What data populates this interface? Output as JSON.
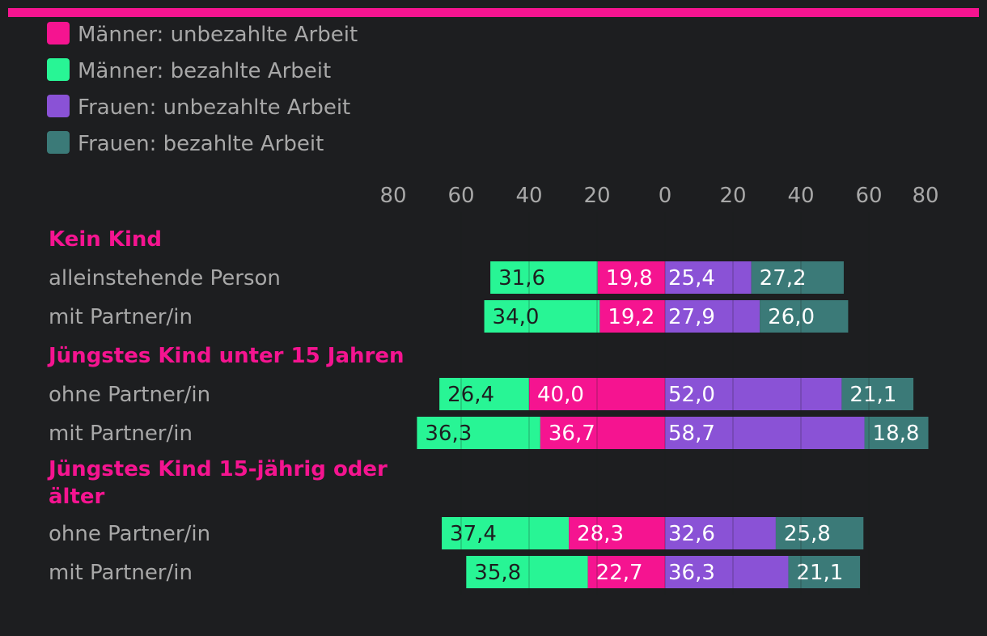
{
  "colors": {
    "accent": "#f51490",
    "men_unpaid": "#f51490",
    "men_paid": "#28f595",
    "women_unpaid": "#8a52d6",
    "women_paid": "#3b7a78",
    "background": "#1d1e20",
    "text": "#a8a8a8"
  },
  "chart_data": {
    "type": "bar",
    "orientation": "horizontal-stacked-diverging",
    "legend": [
      {
        "key": "men_unpaid",
        "label": "Männer: unbezahlte Arbeit"
      },
      {
        "key": "men_paid",
        "label": "Männer: bezahlte Arbeit"
      },
      {
        "key": "women_unpaid",
        "label": "Frauen: unbezahlte Arbeit"
      },
      {
        "key": "women_paid",
        "label": "Frauen: bezahlte Arbeit"
      }
    ],
    "legend_position": "top-left",
    "x_ticks_left": [
      "80",
      "60",
      "40",
      "20"
    ],
    "x_tick_zero": "0",
    "x_ticks_right": [
      "20",
      "40",
      "60",
      "80"
    ],
    "xlim": [
      -80,
      80
    ],
    "groups": [
      {
        "label": "Kein Kind",
        "rows": [
          {
            "label": "alleinstehende Person",
            "men_paid": 31.6,
            "men_unpaid": 19.8,
            "women_unpaid": 25.4,
            "women_paid": 27.2,
            "labels": {
              "men_paid": "31,6",
              "men_unpaid": "19,8",
              "women_unpaid": "25,4",
              "women_paid": "27,2"
            }
          },
          {
            "label": "mit Partner/in",
            "men_paid": 34.0,
            "men_unpaid": 19.2,
            "women_unpaid": 27.9,
            "women_paid": 26.0,
            "labels": {
              "men_paid": "34,0",
              "men_unpaid": "19,2",
              "women_unpaid": "27,9",
              "women_paid": "26,0"
            }
          }
        ]
      },
      {
        "label": "Jüngstes Kind unter 15 Jahren",
        "rows": [
          {
            "label": "ohne Partner/in",
            "men_paid": 26.4,
            "men_unpaid": 40.0,
            "women_unpaid": 52.0,
            "women_paid": 21.1,
            "labels": {
              "men_paid": "26,4",
              "men_unpaid": "40,0",
              "women_unpaid": "52,0",
              "women_paid": "21,1"
            }
          },
          {
            "label": "mit Partner/in",
            "men_paid": 36.3,
            "men_unpaid": 36.7,
            "women_unpaid": 58.7,
            "women_paid": 18.8,
            "labels": {
              "men_paid": "36,3",
              "men_unpaid": "36,7",
              "women_unpaid": "58,7",
              "women_paid": "18,8"
            }
          }
        ]
      },
      {
        "label": "Jüngstes Kind 15-jährig oder älter",
        "label_lines": [
          "Jüngstes Kind 15-jährig oder",
          "älter"
        ],
        "rows": [
          {
            "label": "ohne Partner/in",
            "men_paid": 37.4,
            "men_unpaid": 28.3,
            "women_unpaid": 32.6,
            "women_paid": 25.8,
            "labels": {
              "men_paid": "37,4",
              "men_unpaid": "28,3",
              "women_unpaid": "32,6",
              "women_paid": "25,8"
            }
          },
          {
            "label": "mit Partner/in",
            "men_paid": 35.8,
            "men_unpaid": 22.7,
            "women_unpaid": 36.3,
            "women_paid": 21.1,
            "labels": {
              "men_paid": "35,8",
              "men_unpaid": "22,7",
              "women_unpaid": "36,3",
              "women_paid": "21,1"
            }
          }
        ]
      }
    ]
  }
}
